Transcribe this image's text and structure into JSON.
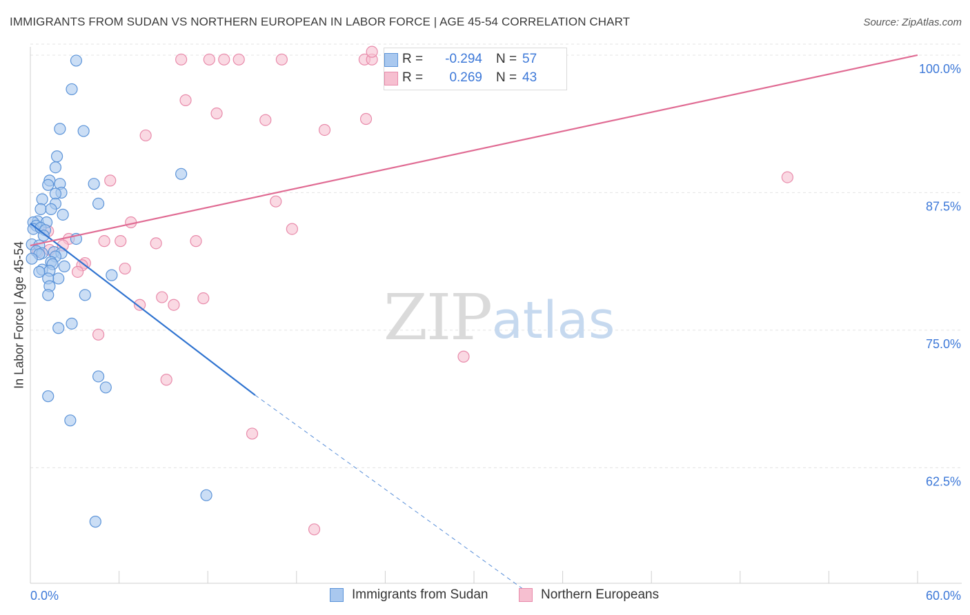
{
  "title": "IMMIGRANTS FROM SUDAN VS NORTHERN EUROPEAN IN LABOR FORCE | AGE 45-54 CORRELATION CHART",
  "source": "Source: ZipAtlas.com",
  "watermark": {
    "zip": "ZIP",
    "atlas": "atlas"
  },
  "colors": {
    "blue_fill": "#a9c8ef",
    "blue_stroke": "#5b93d8",
    "blue_line": "#2f73d0",
    "pink_fill": "#f6bfd0",
    "pink_stroke": "#e88aaa",
    "pink_line": "#e06b93",
    "axis_text": "#3c78d8",
    "grid": "#e3e3e3"
  },
  "legend": {
    "rows": [
      {
        "r_label": "R =",
        "r_value": "-0.294",
        "n_label": "N =",
        "n_value": "57"
      },
      {
        "r_label": "R =",
        "r_value": "0.269",
        "n_label": "N =",
        "n_value": "43"
      }
    ]
  },
  "bottom_legend": {
    "items": [
      {
        "label": "Immigrants from Sudan"
      },
      {
        "label": "Northern Europeans"
      }
    ]
  },
  "chart_data": {
    "type": "scatter",
    "title": "IMMIGRANTS FROM SUDAN VS NORTHERN EUROPEAN IN LABOR FORCE | AGE 45-54 CORRELATION CHART",
    "xlabel": "",
    "ylabel": "In Labor Force | Age 45-54",
    "xlim": [
      0,
      60
    ],
    "ylim": [
      52,
      101.5
    ],
    "x_tick_labels": [
      "0.0%",
      "60.0%"
    ],
    "y_ticks": [
      62.5,
      75.0,
      87.5,
      100.0
    ],
    "y_tick_labels": [
      "62.5%",
      "75.0%",
      "87.5%",
      "100.0%"
    ],
    "grid": true,
    "series": [
      {
        "name": "Immigrants from Sudan",
        "color": "blue",
        "points": [
          [
            3.1,
            99.5
          ],
          [
            2.8,
            96.9
          ],
          [
            2.0,
            93.3
          ],
          [
            3.6,
            93.1
          ],
          [
            1.8,
            90.8
          ],
          [
            1.7,
            89.8
          ],
          [
            10.2,
            89.2
          ],
          [
            1.3,
            88.6
          ],
          [
            2.0,
            88.3
          ],
          [
            1.2,
            88.2
          ],
          [
            4.3,
            88.3
          ],
          [
            2.1,
            87.5
          ],
          [
            1.7,
            87.4
          ],
          [
            0.8,
            86.9
          ],
          [
            1.7,
            86.5
          ],
          [
            4.6,
            86.5
          ],
          [
            0.7,
            86.0
          ],
          [
            1.4,
            86.0
          ],
          [
            2.2,
            85.5
          ],
          [
            0.5,
            84.9
          ],
          [
            0.2,
            84.8
          ],
          [
            1.1,
            84.8
          ],
          [
            0.4,
            84.5
          ],
          [
            0.2,
            84.2
          ],
          [
            0.7,
            84.3
          ],
          [
            1.0,
            84.1
          ],
          [
            0.9,
            83.6
          ],
          [
            3.1,
            83.3
          ],
          [
            0.1,
            82.8
          ],
          [
            0.6,
            82.7
          ],
          [
            0.4,
            82.2
          ],
          [
            0.8,
            82.0
          ],
          [
            1.6,
            82.1
          ],
          [
            2.1,
            82.0
          ],
          [
            0.6,
            81.9
          ],
          [
            1.7,
            81.7
          ],
          [
            0.1,
            81.5
          ],
          [
            1.4,
            81.2
          ],
          [
            1.5,
            81.0
          ],
          [
            2.3,
            80.8
          ],
          [
            0.8,
            80.5
          ],
          [
            1.3,
            80.4
          ],
          [
            0.6,
            80.3
          ],
          [
            5.5,
            80.0
          ],
          [
            1.9,
            79.7
          ],
          [
            1.2,
            79.7
          ],
          [
            1.3,
            79.0
          ],
          [
            3.7,
            78.2
          ],
          [
            1.2,
            78.2
          ],
          [
            2.8,
            75.6
          ],
          [
            1.9,
            75.2
          ],
          [
            4.6,
            70.8
          ],
          [
            5.1,
            69.8
          ],
          [
            1.2,
            69.0
          ],
          [
            2.7,
            66.8
          ],
          [
            11.9,
            60.0
          ],
          [
            4.4,
            57.6
          ]
        ]
      },
      {
        "name": "Northern Europeans",
        "color": "pink",
        "points": [
          [
            10.2,
            99.6
          ],
          [
            12.1,
            99.6
          ],
          [
            13.1,
            99.6
          ],
          [
            14.1,
            99.6
          ],
          [
            17.0,
            99.6
          ],
          [
            22.6,
            99.6
          ],
          [
            23.1,
            99.6
          ],
          [
            24.6,
            99.6
          ],
          [
            23.1,
            100.3
          ],
          [
            10.5,
            95.9
          ],
          [
            12.6,
            94.7
          ],
          [
            15.9,
            94.1
          ],
          [
            22.7,
            94.2
          ],
          [
            19.9,
            93.2
          ],
          [
            7.8,
            92.7
          ],
          [
            51.2,
            88.9
          ],
          [
            5.4,
            88.6
          ],
          [
            16.6,
            86.7
          ],
          [
            6.8,
            84.8
          ],
          [
            17.7,
            84.2
          ],
          [
            1.2,
            84.0
          ],
          [
            2.6,
            83.3
          ],
          [
            11.2,
            83.1
          ],
          [
            5.0,
            83.1
          ],
          [
            6.1,
            83.1
          ],
          [
            8.5,
            82.9
          ],
          [
            2.2,
            82.7
          ],
          [
            0.5,
            82.1
          ],
          [
            1.3,
            82.3
          ],
          [
            3.7,
            81.1
          ],
          [
            3.5,
            80.9
          ],
          [
            6.4,
            80.6
          ],
          [
            3.2,
            80.3
          ],
          [
            8.9,
            78.0
          ],
          [
            11.7,
            77.9
          ],
          [
            7.4,
            77.3
          ],
          [
            9.7,
            77.3
          ],
          [
            4.6,
            74.6
          ],
          [
            29.3,
            72.6
          ],
          [
            9.2,
            70.5
          ],
          [
            15.0,
            65.6
          ],
          [
            19.2,
            56.9
          ],
          [
            25.1,
            99.9
          ]
        ]
      }
    ],
    "trend_lines": [
      {
        "series": "Immigrants from Sudan",
        "x0": 0.0,
        "y0": 84.7,
        "x1": 15.2,
        "y1": 69.1,
        "dash_to_x": 33.5,
        "dash_to_y": 51.3
      },
      {
        "series": "Northern Europeans",
        "x0": 0.0,
        "y0": 82.7,
        "x1": 60.0,
        "y1": 100.0
      }
    ]
  }
}
